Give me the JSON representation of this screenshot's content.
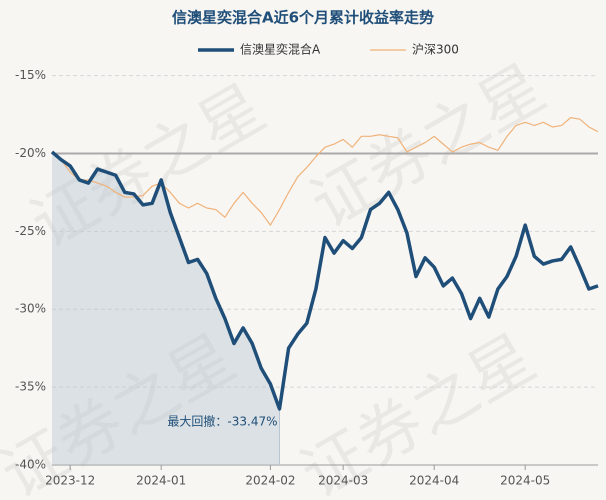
{
  "chart_data": {
    "type": "line",
    "title": "信澳星奕混合A近6个月累计收益率走势",
    "watermark": "证券之星",
    "categories": [
      null,
      null,
      "2023-12",
      null,
      null,
      null,
      null,
      null,
      null,
      null,
      null,
      null,
      "2024-01",
      null,
      null,
      null,
      null,
      null,
      null,
      null,
      null,
      null,
      null,
      null,
      "2024-02",
      null,
      null,
      null,
      null,
      null,
      null,
      null,
      "2024-03",
      null,
      null,
      null,
      null,
      null,
      null,
      null,
      null,
      null,
      "2024-04",
      null,
      null,
      null,
      null,
      null,
      null,
      null,
      null,
      null,
      "2024-05",
      null,
      null,
      null,
      null,
      null,
      null,
      null,
      null
    ],
    "series": [
      {
        "name": "信澳星奕混合A",
        "color": "#1f4e79",
        "values": [
          -19.9,
          -20.4,
          -20.8,
          -21.7,
          -21.9,
          -21.0,
          -21.2,
          -21.4,
          -22.5,
          -22.6,
          -23.3,
          -23.2,
          -21.7,
          -23.8,
          -25.4,
          -27.0,
          -26.8,
          -27.7,
          -29.3,
          -30.6,
          -32.2,
          -31.2,
          -32.2,
          -33.8,
          -34.8,
          -36.4,
          -32.5,
          -31.6,
          -30.9,
          -28.7,
          -25.4,
          -26.4,
          -25.6,
          -26.1,
          -25.4,
          -23.6,
          -23.2,
          -22.5,
          -23.6,
          -25.1,
          -27.9,
          -26.7,
          -27.3,
          -28.5,
          -28.0,
          -29.0,
          -30.6,
          -29.3,
          -30.5,
          -28.7,
          -27.9,
          -26.6,
          -24.6,
          -26.6,
          -27.1,
          -26.9,
          -26.8,
          -26.0,
          -27.3,
          -28.7,
          -28.5
        ]
      },
      {
        "name": "沪深300",
        "color": "#f0b27a",
        "values": [
          -19.9,
          -20.4,
          -21.2,
          -21.7,
          -21.7,
          -21.9,
          -22.1,
          -22.5,
          -22.8,
          -22.8,
          -22.7,
          -22.1,
          -21.9,
          -22.5,
          -23.2,
          -23.5,
          -23.2,
          -23.5,
          -23.6,
          -24.1,
          -23.2,
          -22.5,
          -23.2,
          -23.8,
          -24.6,
          -23.6,
          -22.5,
          -21.5,
          -20.9,
          -20.2,
          -19.6,
          -19.4,
          -19.1,
          -19.6,
          -18.9,
          -18.9,
          -18.8,
          -18.9,
          -19.0,
          -19.9,
          -19.6,
          -19.3,
          -18.9,
          -19.4,
          -19.9,
          -19.6,
          -19.4,
          -19.3,
          -19.6,
          -19.8,
          -18.9,
          -18.2,
          -18.0,
          -18.2,
          -18.0,
          -18.3,
          -18.2,
          -17.7,
          -17.8,
          -18.3,
          -18.6
        ]
      }
    ],
    "ylim": [
      -40,
      -14
    ],
    "yticks": [
      {
        "value": -40,
        "label": "-40%"
      },
      {
        "value": -35,
        "label": "-35%"
      },
      {
        "value": -30,
        "label": "-30%"
      },
      {
        "value": -25,
        "label": "-25%"
      },
      {
        "value": -20,
        "label": "-20%"
      },
      {
        "value": -15,
        "label": "-15%"
      }
    ],
    "grid": true,
    "reference_line": -20,
    "drawdown": {
      "label": "最大回撤：-33.47%",
      "start_index": 0,
      "end_index": 25
    }
  }
}
